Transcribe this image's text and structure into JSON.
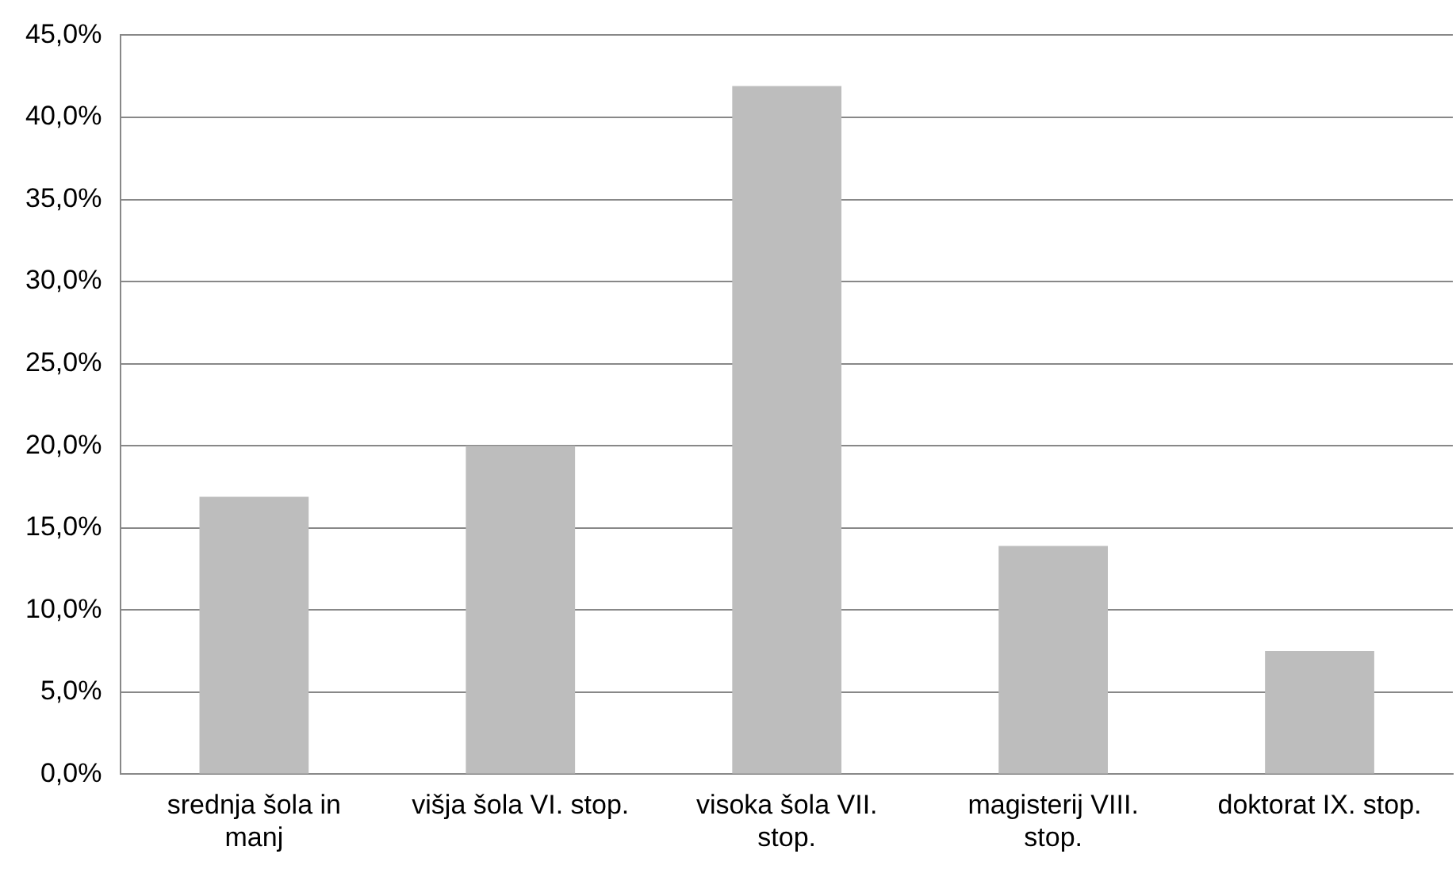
{
  "chart_data": {
    "type": "bar",
    "categories": [
      "srednja šola in manj",
      "višja šola VI. stop.",
      "visoka šola VII. stop.",
      "magisterij VIII. stop.",
      "doktorat IX. stop."
    ],
    "values": [
      16.9,
      20.0,
      41.9,
      13.9,
      7.5
    ],
    "color": "#bdbdbd",
    "ylim": [
      0,
      45
    ],
    "yticks": [
      {
        "value": 0,
        "label": "0,0%"
      },
      {
        "value": 5,
        "label": "5,0%"
      },
      {
        "value": 10,
        "label": "10,0%"
      },
      {
        "value": 15,
        "label": "15,0%"
      },
      {
        "value": 20,
        "label": "20,0%"
      },
      {
        "value": 25,
        "label": "25,0%"
      },
      {
        "value": 30,
        "label": "30,0%"
      },
      {
        "value": 35,
        "label": "35,0%"
      },
      {
        "value": 40,
        "label": "40,0%"
      },
      {
        "value": 45,
        "label": "45,0%"
      }
    ],
    "grid": "y",
    "legend": false
  }
}
